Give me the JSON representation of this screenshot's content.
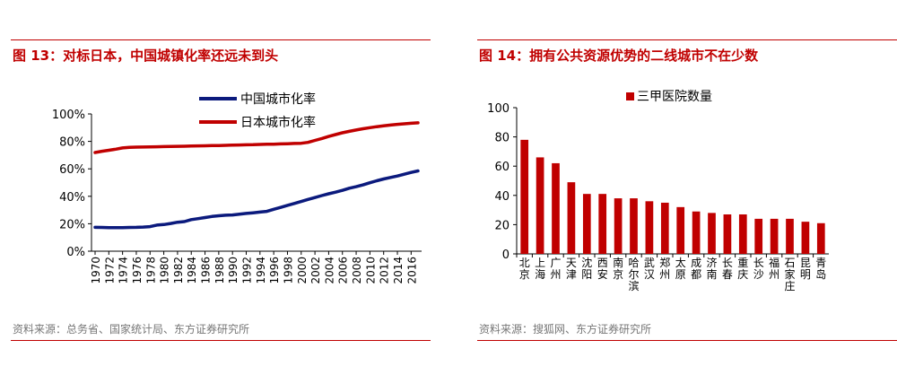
{
  "chart_data": [
    {
      "type": "line",
      "title": "图 13：对标日本，中国城镇化率还远未到头",
      "source": "资料来源：总务省、国家统计局、东方证券研究所",
      "legend_position": "top",
      "yticks": [
        "0%",
        "20%",
        "40%",
        "60%",
        "80%",
        "100%"
      ],
      "ylim": [
        0,
        100
      ],
      "x_ticks": [
        "1970",
        "1972",
        "1974",
        "1976",
        "1978",
        "1980",
        "1982",
        "1984",
        "1986",
        "1988",
        "1990",
        "1992",
        "1994",
        "1996",
        "1998",
        "2000",
        "2002",
        "2004",
        "2006",
        "2008",
        "2010",
        "2012",
        "2014",
        "2016"
      ],
      "x": [
        1970,
        1971,
        1972,
        1973,
        1974,
        1975,
        1976,
        1977,
        1978,
        1979,
        1980,
        1981,
        1982,
        1983,
        1984,
        1985,
        1986,
        1987,
        1988,
        1989,
        1990,
        1991,
        1992,
        1993,
        1994,
        1995,
        1996,
        1997,
        1998,
        1999,
        2000,
        2001,
        2002,
        2003,
        2004,
        2005,
        2006,
        2007,
        2008,
        2009,
        2010,
        2011,
        2012,
        2013,
        2014,
        2015,
        2016,
        2017
      ],
      "series": [
        {
          "name": "中国城市化率",
          "color": "#0b1a7d",
          "values": [
            17.4,
            17.3,
            17.1,
            17.2,
            17.2,
            17.3,
            17.4,
            17.6,
            17.9,
            19.0,
            19.4,
            20.2,
            21.1,
            21.6,
            23.0,
            23.7,
            24.5,
            25.3,
            25.8,
            26.2,
            26.4,
            26.9,
            27.5,
            28.0,
            28.5,
            29.0,
            30.5,
            31.9,
            33.4,
            34.8,
            36.2,
            37.7,
            39.1,
            40.5,
            41.8,
            43.0,
            44.3,
            45.9,
            47.0,
            48.3,
            49.9,
            51.3,
            52.6,
            53.7,
            54.8,
            56.1,
            57.4,
            58.5
          ]
        },
        {
          "name": "日本城市化率",
          "color": "#c00000",
          "values": [
            71.9,
            72.8,
            73.5,
            74.3,
            75.2,
            75.7,
            75.8,
            75.9,
            76.0,
            76.1,
            76.2,
            76.3,
            76.4,
            76.5,
            76.6,
            76.7,
            76.8,
            76.9,
            77.0,
            77.1,
            77.3,
            77.4,
            77.5,
            77.6,
            77.8,
            77.9,
            78.0,
            78.2,
            78.3,
            78.5,
            78.6,
            79.3,
            80.7,
            82.1,
            83.6,
            85.0,
            86.3,
            87.3,
            88.3,
            89.2,
            90.0,
            90.7,
            91.3,
            91.9,
            92.4,
            92.8,
            93.2,
            93.5
          ]
        }
      ]
    },
    {
      "type": "bar",
      "title": "图 14：拥有公共资源优势的二线城市不在少数",
      "source": "资料来源：搜狐网、东方证券研究所",
      "legend_position": "top",
      "series": [
        {
          "name": "三甲医院数量",
          "color": "#c00000"
        }
      ],
      "yticks": [
        "0",
        "20",
        "40",
        "60",
        "80",
        "100"
      ],
      "ylim": [
        0,
        100
      ],
      "categories": [
        "北京",
        "上海",
        "广州",
        "天津",
        "沈阳",
        "西安",
        "南京",
        "哈尔滨",
        "武汉",
        "郑州",
        "太原",
        "成都",
        "济南",
        "长春",
        "重庆",
        "长沙",
        "福州",
        "石家庄",
        "昆明",
        "青岛"
      ],
      "values": [
        78,
        66,
        62,
        49,
        41,
        41,
        38,
        38,
        36,
        35,
        32,
        29,
        28,
        27,
        27,
        24,
        24,
        24,
        22,
        21
      ]
    }
  ]
}
